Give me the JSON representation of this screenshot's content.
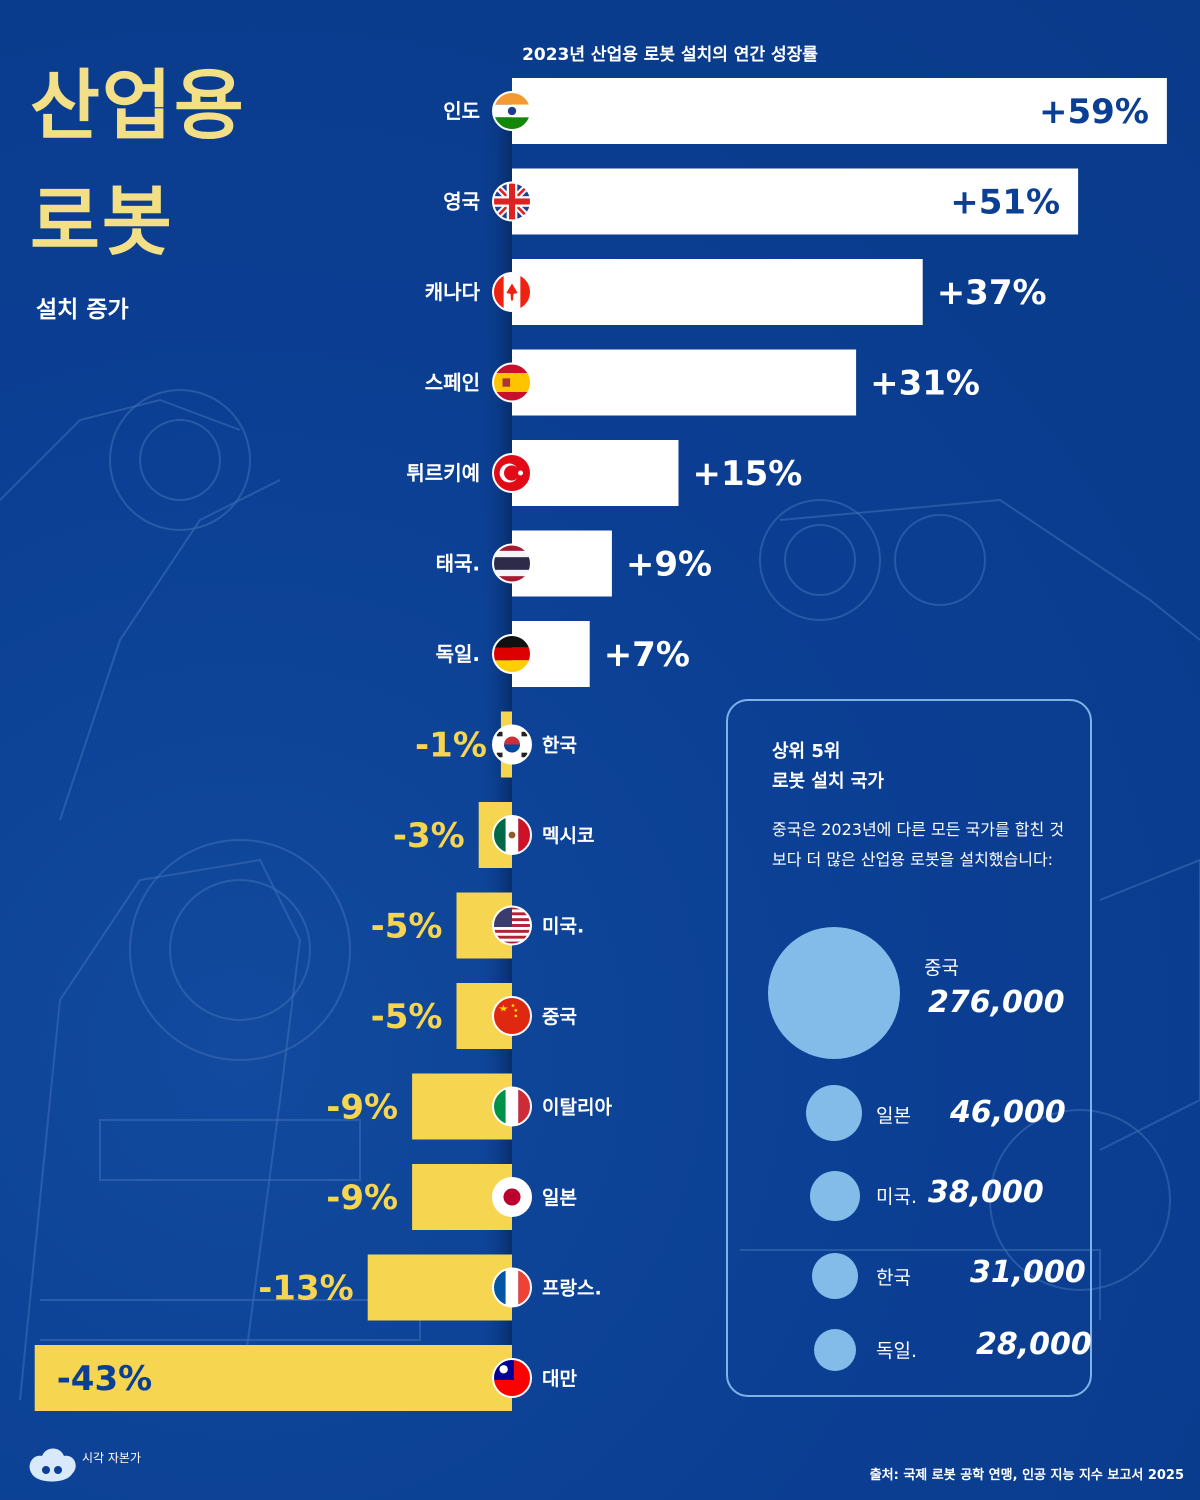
{
  "header": {
    "title_line1": "산업용",
    "title_line2": "로봇",
    "subtitle": "설치 증가"
  },
  "chart_data": {
    "type": "bar",
    "orientation": "horizontal-diverging",
    "title": "2023년 산업용 로봇 설치의 연간 성장률",
    "unit": "%",
    "categories": [
      "인도",
      "영국",
      "캐나다",
      "스페인",
      "튀르키예",
      "태국.",
      "독일.",
      "한국",
      "멕시코",
      "미국.",
      "중국",
      "이탈리아",
      "일본",
      "프랑스.",
      "대만"
    ],
    "values": [
      59,
      51,
      37,
      31,
      15,
      9,
      7,
      -1,
      -3,
      -5,
      -5,
      -9,
      -9,
      -13,
      -43
    ],
    "labels": [
      "+59%",
      "+51%",
      "+37%",
      "+31%",
      "+15%",
      "+9%",
      "+7%",
      "-1%",
      "-3%",
      "-5%",
      "-5%",
      "-9%",
      "-9%",
      "-13%",
      "-43%"
    ],
    "flags": [
      "india-flag",
      "uk-flag",
      "canada-flag",
      "spain-flag",
      "turkey-flag",
      "thailand-flag",
      "germany-flag",
      "korea-flag",
      "mexico-flag",
      "usa-flag",
      "china-flag",
      "italy-flag",
      "japan-flag",
      "france-flag",
      "taiwan-flag"
    ],
    "colors": {
      "positive": "#ffffff",
      "negative": "#f6d550",
      "positive_label": "#ffffff",
      "negative_label": "#f6d550"
    }
  },
  "top5": {
    "heading_line1": "상위 5위",
    "heading_line2": "로봇 설치 국가",
    "description": "중국은 2023년에 다른 모든 국가를 합친 것보다 더 많은 산업용 로봇을 설치했습니다:",
    "items": [
      {
        "name": "중국",
        "value": "276,000",
        "amount": 276000
      },
      {
        "name": "일본",
        "value": "46,000",
        "amount": 46000
      },
      {
        "name": "미국.",
        "value": "38,000",
        "amount": 38000
      },
      {
        "name": "한국",
        "value": "31,000",
        "amount": 31000
      },
      {
        "name": "독일.",
        "value": "28,000",
        "amount": 28000
      }
    ],
    "bubble_color": "#83bce8"
  },
  "footer": {
    "source": "출처: 국제 로봇 공학 연맹, 인공 지능 지수 보고서 2025",
    "brand": "시각 자본가"
  },
  "colors": {
    "background": "#0b3f93",
    "title": "#f2df86"
  }
}
